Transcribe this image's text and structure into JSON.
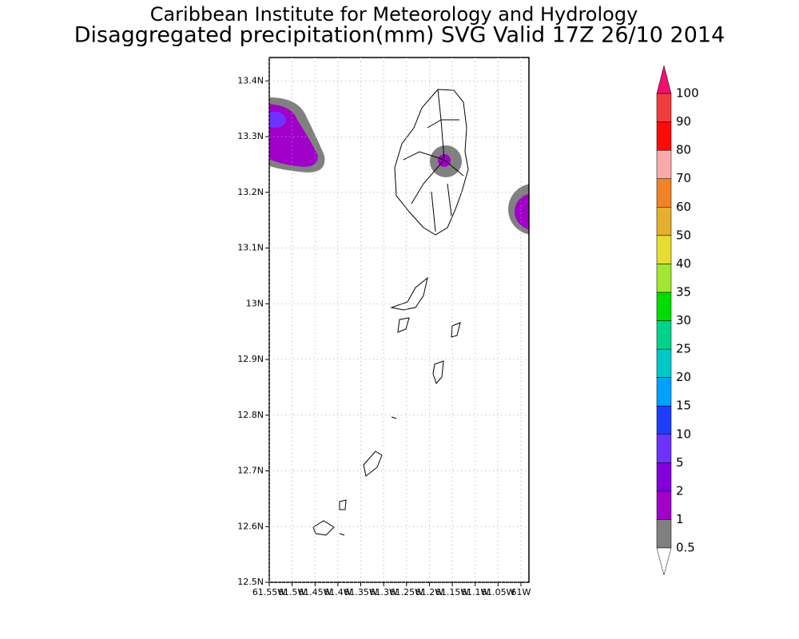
{
  "chart_data": {
    "type": "map",
    "title": "Caribbean Institute for Meteorology and Hydrology",
    "subtitle": "Disaggregated precipitation(mm) SVG Valid 17Z 26/10 2014",
    "xlim": [
      -61.55,
      -60.9825
    ],
    "ylim": [
      12.5,
      13.442
    ],
    "xticks": [
      {
        "value": -61.55,
        "label": "61.55W"
      },
      {
        "value": -61.5,
        "label": "61.5W"
      },
      {
        "value": -61.45,
        "label": "61.45W"
      },
      {
        "value": -61.4,
        "label": "61.4W"
      },
      {
        "value": -61.35,
        "label": "61.35W"
      },
      {
        "value": -61.3,
        "label": "61.3W"
      },
      {
        "value": -61.25,
        "label": "61.25W"
      },
      {
        "value": -61.2,
        "label": "61.2W"
      },
      {
        "value": -61.15,
        "label": "61.15W"
      },
      {
        "value": -61.1,
        "label": "61.1W"
      },
      {
        "value": -61.05,
        "label": "61.05W"
      },
      {
        "value": -61,
        "label": "61W"
      }
    ],
    "yticks": [
      {
        "value": 12.5,
        "label": "12.5N"
      },
      {
        "value": 12.6,
        "label": "12.6N"
      },
      {
        "value": 12.7,
        "label": "12.7N"
      },
      {
        "value": 12.8,
        "label": "12.8N"
      },
      {
        "value": 12.9,
        "label": "12.9N"
      },
      {
        "value": 13,
        "label": "13N"
      },
      {
        "value": 13.1,
        "label": "13.1N"
      },
      {
        "value": 13.2,
        "label": "13.2N"
      },
      {
        "value": 13.3,
        "label": "13.3N"
      },
      {
        "value": 13.4,
        "label": "13.4N"
      }
    ],
    "grid": true,
    "colorbar": {
      "levels": [
        0.5,
        1,
        2,
        5,
        10,
        15,
        20,
        25,
        30,
        35,
        40,
        50,
        60,
        70,
        80,
        90,
        100
      ],
      "colors": [
        "#ffffff",
        "#808080",
        "#a000c8",
        "#8200dc",
        "#6e32ff",
        "#1e3cff",
        "#00a0ff",
        "#00c8c8",
        "#00d28c",
        "#00dc00",
        "#a0e632",
        "#e6dc32",
        "#e6af2d",
        "#f08228",
        "#faaaaa",
        "#ff0a0a",
        "#f03c3c",
        "#f0106e"
      ]
    }
  }
}
